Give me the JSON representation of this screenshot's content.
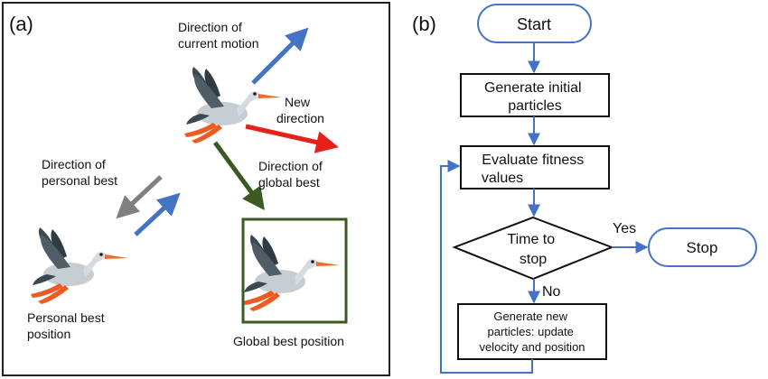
{
  "panel_a": {
    "label": "(a)",
    "labels": {
      "current_motion": [
        "Direction of",
        "current motion"
      ],
      "new_direction": [
        "New",
        "direction"
      ],
      "personal_best_dir": [
        "Direction of",
        "personal best"
      ],
      "global_best_dir": [
        "Direction of",
        "global best"
      ],
      "personal_best_pos": [
        "Personal best",
        "position"
      ],
      "global_best_pos": "Global best position"
    },
    "colors": {
      "current_motion_arrow": "#4472c4",
      "new_direction_arrow": "#e8201a",
      "global_best_arrow": "#3a5a22",
      "personal_best_arrow": "#808080",
      "toward_personal_arrow": "#4472c4",
      "global_box_border": "#3a5a22",
      "frame": "#222222"
    },
    "icons": [
      "stork-icon",
      "stork-icon",
      "stork-icon"
    ]
  },
  "panel_b": {
    "label": "(b)",
    "start": "Start",
    "generate": [
      "Generate initial",
      "particles"
    ],
    "evaluate": [
      "Evaluate fitness",
      "values"
    ],
    "decision": [
      "Time to",
      "stop"
    ],
    "yes": "Yes",
    "no": "No",
    "stop": "Stop",
    "update": [
      "Generate new",
      "particles: update",
      "velocity and position"
    ],
    "colors": {
      "terminal_border": "#4472c4",
      "arrow": "#4472c4",
      "box_border": "#111111"
    }
  }
}
